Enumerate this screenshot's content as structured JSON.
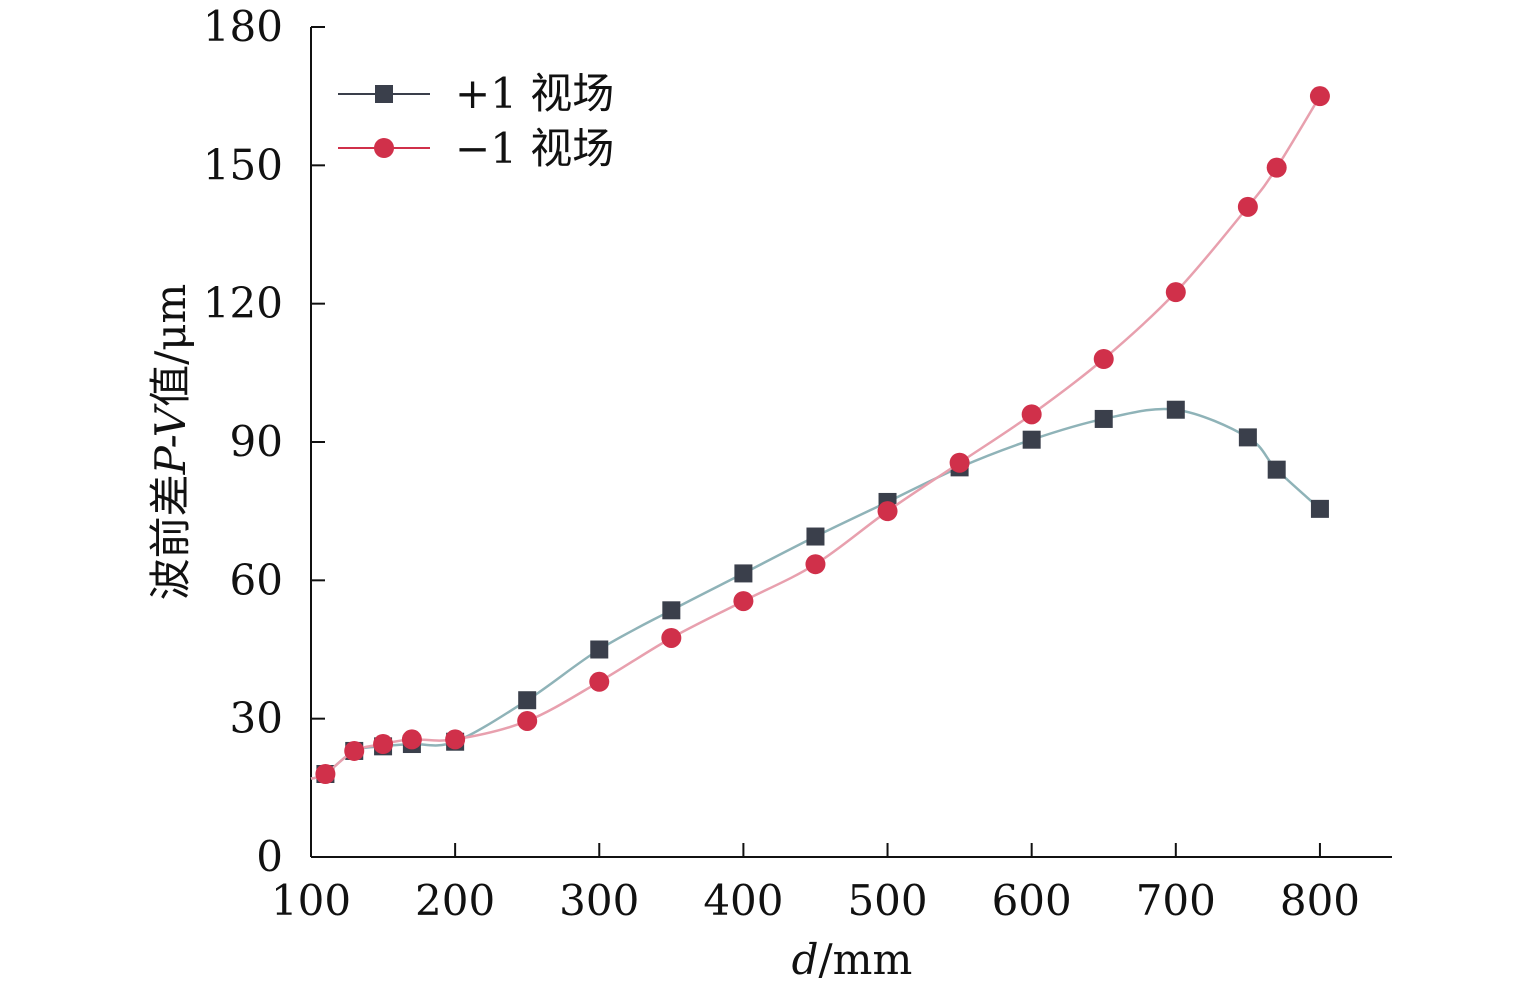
{
  "chart_data": {
    "type": "line",
    "xlabel_italic": "d",
    "xlabel_unit": "/mm",
    "ylabel_prefix": "波前差",
    "ylabel_italic": "P-V",
    "ylabel_suffix": "值/μm",
    "xlim": [
      100,
      850
    ],
    "ylim": [
      0,
      180
    ],
    "xticks": [
      100,
      200,
      300,
      400,
      500,
      600,
      700,
      800
    ],
    "yticks": [
      0,
      30,
      60,
      90,
      120,
      150,
      180
    ],
    "grid": false,
    "legend_position": "top-left",
    "series": [
      {
        "name": "+1 视场",
        "marker": "square",
        "color": "#3a3f4b",
        "line_color": "#8fb3b8",
        "x": [
          100,
          110,
          130,
          150,
          170,
          200,
          250,
          300,
          350,
          400,
          450,
          500,
          550,
          600,
          650,
          700,
          750,
          770,
          800
        ],
        "y": [
          17,
          18,
          23,
          24,
          24.5,
          25,
          34,
          45,
          53.5,
          61.5,
          69.5,
          77,
          84.5,
          90.5,
          95,
          97,
          91,
          84,
          75.5
        ]
      },
      {
        "name": "−1 视场",
        "marker": "circle",
        "color": "#d0304a",
        "line_color": "#e8a0ae",
        "x": [
          100,
          110,
          130,
          150,
          170,
          200,
          250,
          300,
          350,
          400,
          450,
          500,
          550,
          600,
          650,
          700,
          750,
          770,
          800
        ],
        "y": [
          17,
          18,
          23,
          24.5,
          25.5,
          25.5,
          29.5,
          38,
          47.5,
          55.5,
          63.5,
          75,
          85.5,
          96,
          108,
          122.5,
          141,
          149.5,
          165
        ]
      }
    ]
  }
}
